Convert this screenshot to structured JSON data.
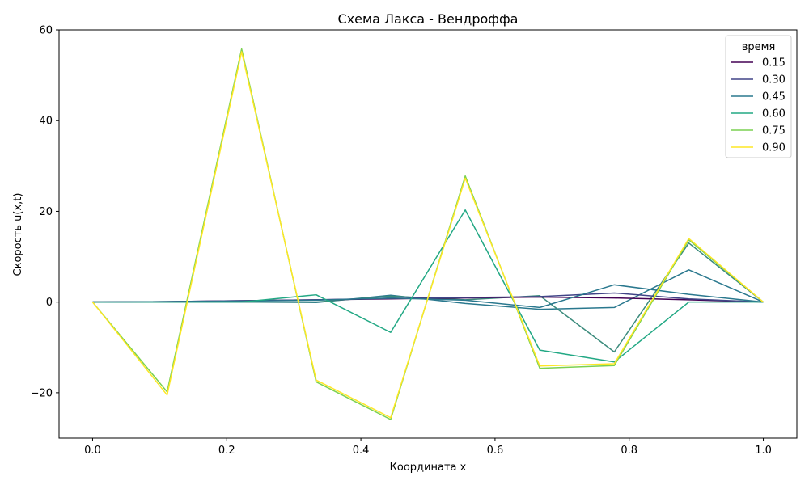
{
  "chart_data": {
    "type": "line",
    "title": "Схема Лакса - Вендроффа",
    "xlabel": "Координата x",
    "ylabel": "Скорость u(x,t)",
    "xlim": [
      -0.05,
      1.05
    ],
    "ylim": [
      -30,
      60
    ],
    "xticks": [
      0.0,
      0.2,
      0.4,
      0.6,
      0.8,
      1.0
    ],
    "xtick_labels": [
      "0.0",
      "0.2",
      "0.4",
      "0.6",
      "0.8",
      "1.0"
    ],
    "yticks": [
      -20,
      0,
      20,
      40,
      60
    ],
    "ytick_labels": [
      "−20",
      "0",
      "20",
      "40",
      "60"
    ],
    "grid": false,
    "legend": {
      "title": "время",
      "placement": "top-right"
    },
    "x": [
      0.0,
      0.1111,
      0.2222,
      0.3333,
      0.4444,
      0.5556,
      0.6667,
      0.7778,
      0.8889,
      1.0
    ],
    "series": [
      {
        "name": "0.15",
        "color": "#440154",
        "values": [
          0,
          0.1,
          0.3,
          0.5,
          0.7,
          0.9,
          1.1,
          0.9,
          0.5,
          0
        ]
      },
      {
        "name": "0.30",
        "color": "#414487",
        "values": [
          0,
          0.1,
          0.3,
          0.5,
          0.8,
          1.0,
          1.2,
          2.0,
          0.7,
          0
        ]
      },
      {
        "name": "0.45",
        "color": "#2a788e",
        "values": [
          0,
          0.1,
          0.2,
          0.4,
          0.9,
          0.4,
          -1.2,
          3.8,
          1.7,
          0
        ]
      },
      {
        "name": "0.60",
        "color": "#22a884",
        "values": [
          0,
          0,
          0,
          1.6,
          -6.7,
          20.3,
          -10.6,
          -13.2,
          0,
          0
        ]
      },
      {
        "name": "0.75",
        "color": "#7ad151",
        "values": [
          0,
          -19.8,
          55.8,
          -17.6,
          -25.9,
          27.8,
          -14.6,
          -14.0,
          13.7,
          0
        ]
      },
      {
        "name": "0.90",
        "color": "#fde725",
        "values": [
          0,
          -20.5,
          55.2,
          -17.2,
          -25.5,
          27.3,
          -14.1,
          -13.6,
          14.0,
          0
        ]
      }
    ],
    "extra_lines": [
      {
        "color": "#2a788e",
        "values": [
          0,
          0,
          0,
          -0.1,
          1.5,
          -0.3,
          -1.6,
          -1.2,
          7.1,
          0
        ]
      },
      {
        "color": "#3b8b7c",
        "values": [
          0,
          0,
          0,
          0,
          1.3,
          0.5,
          1.4,
          -11.0,
          13.0,
          0
        ]
      }
    ]
  }
}
